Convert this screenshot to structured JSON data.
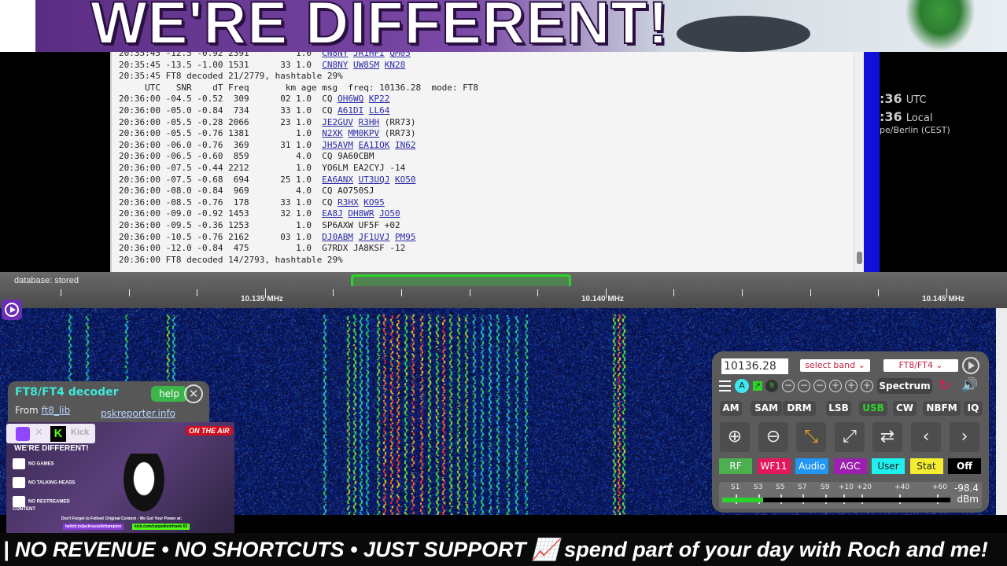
{
  "banner": {
    "headline": "WE'RE DIFFERENT!"
  },
  "log": {
    "rows": [
      {
        "pre": "20:35:45 -12.5 -0.92 2391         1.0  ",
        "msg": [
          {
            "t": "CN8NY",
            "link": true
          },
          {
            "t": "JR1HFI",
            "link": true
          },
          {
            "t": "QM05",
            "link": true
          }
        ]
      },
      {
        "pre": "20:35:45 -13.5 -1.00 1531      33 1.0  ",
        "msg": [
          {
            "t": "CN8NY",
            "link": true
          },
          {
            "t": "UW8SM",
            "link": true
          },
          {
            "t": "KN28",
            "link": true
          }
        ]
      },
      {
        "pre": "20:35:45 FT8 decoded 21/2779, hashtable 29%",
        "msg": []
      },
      {
        "pre": "     UTC   SNR    dT Freq       km age msg  freq: 10136.28  mode: FT8",
        "msg": []
      },
      {
        "pre": "20:36:00 -04.5 -0.52  309      02 1.0  ",
        "msg": [
          {
            "t": "CQ",
            "link": false
          },
          {
            "t": "OH6WQ",
            "link": true
          },
          {
            "t": "KP22",
            "link": true
          }
        ]
      },
      {
        "pre": "20:36:00 -05.0 -0.84  734      33 1.0  ",
        "msg": [
          {
            "t": "CQ",
            "link": false
          },
          {
            "t": "A61DI",
            "link": true
          },
          {
            "t": "LL64",
            "link": true
          }
        ]
      },
      {
        "pre": "20:36:00 -05.5 -0.28 2066      23 1.0  ",
        "msg": [
          {
            "t": "JE2GUV",
            "link": true
          },
          {
            "t": "R3HH",
            "link": true
          },
          {
            "t": "(RR73)",
            "link": false
          }
        ]
      },
      {
        "pre": "20:36:00 -05.5 -0.76 1381         1.0  ",
        "msg": [
          {
            "t": "N2XK",
            "link": true
          },
          {
            "t": "MM0KPV",
            "link": true
          },
          {
            "t": "(RR73)",
            "link": false
          }
        ]
      },
      {
        "pre": "20:36:00 -06.0 -0.76  369      31 1.0  ",
        "msg": [
          {
            "t": "JH5AVM",
            "link": true
          },
          {
            "t": "EA1IOK",
            "link": true
          },
          {
            "t": "IN62",
            "link": true
          }
        ]
      },
      {
        "pre": "20:36:00 -06.5 -0.60  859         4.0  ",
        "msg": [
          {
            "t": "CQ 9A60CBM",
            "link": false
          }
        ]
      },
      {
        "pre": "20:36:00 -07.5 -0.44 2212         1.0  ",
        "msg": [
          {
            "t": "YO6LM EA2CYJ -14",
            "link": false
          }
        ]
      },
      {
        "pre": "20:36:00 -07.5 -0.68  694      25 1.0  ",
        "msg": [
          {
            "t": "EA6ANX",
            "link": true
          },
          {
            "t": "UT3UQJ",
            "link": true
          },
          {
            "t": "KO50",
            "link": true
          }
        ]
      },
      {
        "pre": "20:36:00 -08.0 -0.84  969         4.0  ",
        "msg": [
          {
            "t": "CQ AO750SJ",
            "link": false
          }
        ]
      },
      {
        "pre": "20:36:00 -08.5 -0.76  178      33 1.0  ",
        "msg": [
          {
            "t": "CQ",
            "link": false
          },
          {
            "t": "R3HX",
            "link": true
          },
          {
            "t": "KO95",
            "link": true
          }
        ]
      },
      {
        "pre": "20:36:00 -09.0 -0.92 1453      32 1.0  ",
        "msg": [
          {
            "t": "EA8J",
            "link": true
          },
          {
            "t": "DH8WR",
            "link": true
          },
          {
            "t": "JO50",
            "link": true
          }
        ]
      },
      {
        "pre": "20:36:00 -09.5 -0.36 1253         1.0  ",
        "msg": [
          {
            "t": "SP6AXW UF5F +02",
            "link": false
          }
        ]
      },
      {
        "pre": "20:36:00 -10.5 -0.76 2162      03 1.0  ",
        "msg": [
          {
            "t": "DJ0ABM",
            "link": true
          },
          {
            "t": "JF1UVJ",
            "link": true
          },
          {
            "t": "PM95",
            "link": true
          }
        ]
      },
      {
        "pre": "20:36:00 -12.0 -0.84  475         1.0  ",
        "msg": [
          {
            "t": "G7RDX JA8KSF -12",
            "link": false
          }
        ]
      },
      {
        "pre": "20:36:00 FT8 decoded 14/2793, hashtable 29%",
        "msg": []
      }
    ]
  },
  "clock": {
    "utc_time": ":36",
    "utc_label": "UTC",
    "local_time": ":36",
    "local_label": "Local",
    "timezone": "pe/Berlin (CEST)"
  },
  "scale": {
    "status": "database: stored",
    "labels": [
      "10.135 MHz",
      "10.140 MHz",
      "10.145 MHz"
    ]
  },
  "decoder": {
    "title": "FT8/FT4 decoder",
    "help": "help",
    "close": "✕",
    "from": "From",
    "lib_link": "ft8_lib",
    "psk_link": "pskreporter.info"
  },
  "ad": {
    "kick": "Kick",
    "on_air": "ON THE AIR",
    "headline": "WE'RE DIFFERENT!",
    "items": [
      "NO GAMES",
      "NO TALKING HEADS",
      "NO RESTREAMED CONTENT"
    ],
    "footer": "Don't Forget to Follow! Original Content - We Got Your Power at:",
    "twitch": "twitch.tv/jackrussellchampion",
    "kick_url": "kick.com/carpediemfrank-53"
  },
  "control": {
    "frequency": "10136.28",
    "band_select": "select band ⌄",
    "mode_select": "FT8/FT4 ⌄",
    "auto_label": "A",
    "nine": "9",
    "spectrum": "Spectrum",
    "modes": [
      {
        "label": "AM"
      },
      {
        "label": "SAM"
      },
      {
        "label": "DRM"
      },
      {
        "label": "LSB"
      },
      {
        "label": "USB",
        "active": true
      },
      {
        "label": "CW"
      },
      {
        "label": "NBFM"
      },
      {
        "label": "IQ"
      }
    ],
    "color_buttons": [
      {
        "label": "RF",
        "bg": "#4caf50",
        "fg": "#ffffff"
      },
      {
        "label": "WF11",
        "bg": "#e0185e",
        "fg": "#ffffff"
      },
      {
        "label": "Audio",
        "bg": "#2196f3",
        "fg": "#ffffff"
      },
      {
        "label": "AGC",
        "bg": "#9c1fb0",
        "fg": "#ffffff"
      },
      {
        "label": "User",
        "bg": "#1ef0f0",
        "fg": "#222222"
      },
      {
        "label": "Stat",
        "bg": "#f5ee30",
        "fg": "#222222"
      },
      {
        "label": "Off",
        "bg": "#000000",
        "fg": "#ffffff"
      }
    ],
    "meter_labels": [
      "S1",
      "S3",
      "S5",
      "S7",
      "S9",
      "+10",
      "+20",
      "+40",
      "+60"
    ],
    "signal_dbm": "-98.4",
    "dbm_unit": "dBm",
    "signal_level_fraction": 0.18
  },
  "ticker": {
    "text": "| NO REVENUE • NO SHORTCUTS • JUST SUPPORT 📈 spend part of your day with Roch and me!"
  }
}
